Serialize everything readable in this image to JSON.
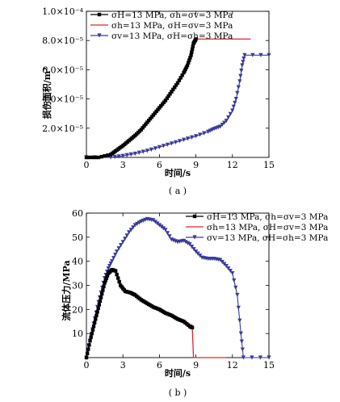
{
  "chart_data": [
    {
      "type": "line",
      "caption": "( a )",
      "xlabel": "时间/s",
      "ylabel": "损伤面积/m²",
      "xlim": [
        0,
        15
      ],
      "ylim": [
        0,
        0.0001
      ],
      "x_ticks": [
        "0",
        "3",
        "6",
        "9",
        "12",
        "15"
      ],
      "y_ticks": [
        "2.0×10⁻⁵",
        "4.0×10⁻⁵",
        "6.0×10⁻⁵",
        "8.0×10⁻⁵",
        "1.0×10⁻⁴"
      ],
      "legend_position": "top-right",
      "series": [
        {
          "name": "σH=13 MPa, σh=σv=3 MPa",
          "marker": "square",
          "color": "#000000",
          "points": [
            [
              0,
              0
            ],
            [
              1,
              0
            ],
            [
              2,
              2e-06
            ],
            [
              2.5,
              5e-06
            ],
            [
              3,
              8e-06
            ],
            [
              3.5,
              1.15e-05
            ],
            [
              4,
              1.5e-05
            ],
            [
              4.5,
              1.9e-05
            ],
            [
              5,
              2.4e-05
            ],
            [
              5.5,
              2.9e-05
            ],
            [
              6,
              3.4e-05
            ],
            [
              6.5,
              3.9e-05
            ],
            [
              7,
              4.5e-05
            ],
            [
              7.5,
              5.1e-05
            ],
            [
              8,
              5.8e-05
            ],
            [
              8.3,
              6.3e-05
            ],
            [
              8.6,
              7e-05
            ],
            [
              8.8,
              7.8e-05
            ],
            [
              9,
              8.1e-05
            ]
          ]
        },
        {
          "name": "σh=13 MPa, σH=σv=3 MPa",
          "marker": "none",
          "color": "#e0262a",
          "points": [
            [
              0,
              0
            ],
            [
              1,
              0
            ],
            [
              2,
              2e-06
            ],
            [
              2.5,
              5e-06
            ],
            [
              3,
              8e-06
            ],
            [
              3.5,
              1.15e-05
            ],
            [
              4,
              1.5e-05
            ],
            [
              4.5,
              1.9e-05
            ],
            [
              5,
              2.4e-05
            ],
            [
              5.5,
              2.9e-05
            ],
            [
              6,
              3.4e-05
            ],
            [
              6.5,
              3.9e-05
            ],
            [
              7,
              4.5e-05
            ],
            [
              7.5,
              5.1e-05
            ],
            [
              8,
              5.8e-05
            ],
            [
              8.3,
              6.3e-05
            ],
            [
              8.6,
              7e-05
            ],
            [
              8.8,
              7.8e-05
            ],
            [
              9,
              8.1e-05
            ],
            [
              10,
              8.1e-05
            ],
            [
              12,
              8.1e-05
            ],
            [
              13.5,
              8.1e-05
            ]
          ]
        },
        {
          "name": "σv=13 MPa, σH=σh=3 MPa",
          "marker": "triangle-down",
          "color": "#3a3a9a",
          "points": [
            [
              0,
              0
            ],
            [
              2,
              0
            ],
            [
              3,
              1e-06
            ],
            [
              4,
              2.5e-06
            ],
            [
              5,
              4.5e-06
            ],
            [
              6,
              7e-06
            ],
            [
              7,
              9.5e-06
            ],
            [
              8,
              1.2e-05
            ],
            [
              9,
              1.45e-05
            ],
            [
              10,
              1.75e-05
            ],
            [
              10.5,
              1.95e-05
            ],
            [
              11,
              2.1e-05
            ],
            [
              11.5,
              2.5e-05
            ],
            [
              12,
              3.2e-05
            ],
            [
              12.3,
              4e-05
            ],
            [
              12.6,
              5.2e-05
            ],
            [
              12.8,
              6.3e-05
            ],
            [
              13,
              7e-05
            ],
            [
              15,
              7e-05
            ]
          ]
        }
      ]
    },
    {
      "type": "line",
      "caption": "( b )",
      "xlabel": "时间/s",
      "ylabel": "流体压力/MPa",
      "xlim": [
        0,
        15
      ],
      "ylim": [
        0,
        60
      ],
      "x_ticks": [
        "0",
        "3",
        "6",
        "9",
        "12",
        "15"
      ],
      "y_ticks": [
        "10",
        "20",
        "30",
        "40",
        "50",
        "60"
      ],
      "legend_position": "top-right",
      "series": [
        {
          "name": "σH=13 MPa, σh=σv=3 MPa",
          "marker": "square",
          "color": "#000000",
          "points": [
            [
              0,
              0
            ],
            [
              0.3,
              7
            ],
            [
              0.6,
              13
            ],
            [
              0.9,
              19
            ],
            [
              1.2,
              25
            ],
            [
              1.5,
              31
            ],
            [
              1.8,
              35
            ],
            [
              2.1,
              36.5
            ],
            [
              2.4,
              36
            ],
            [
              2.8,
              30
            ],
            [
              3.2,
              27.5
            ],
            [
              3.6,
              27
            ],
            [
              4,
              26
            ],
            [
              4.5,
              24
            ],
            [
              5,
              22.5
            ],
            [
              5.5,
              21
            ],
            [
              6,
              20
            ],
            [
              6.5,
              18.5
            ],
            [
              7,
              17.5
            ],
            [
              7.5,
              16
            ],
            [
              8,
              15
            ],
            [
              8.5,
              13
            ],
            [
              8.7,
              12.5
            ]
          ]
        },
        {
          "name": "σh=13 MPa, σH=σv=3 MPa",
          "marker": "none",
          "color": "#e0262a",
          "points": [
            [
              0,
              0
            ],
            [
              0.3,
              7
            ],
            [
              0.6,
              13
            ],
            [
              0.9,
              19
            ],
            [
              1.2,
              25
            ],
            [
              1.5,
              31
            ],
            [
              1.8,
              35
            ],
            [
              2.1,
              36.5
            ],
            [
              2.4,
              36
            ],
            [
              2.8,
              30
            ],
            [
              3.2,
              27.5
            ],
            [
              3.6,
              27
            ],
            [
              4,
              26
            ],
            [
              4.5,
              24
            ],
            [
              5,
              22.5
            ],
            [
              5.5,
              21
            ],
            [
              6,
              20
            ],
            [
              6.5,
              18.5
            ],
            [
              7,
              17.5
            ],
            [
              7.5,
              16
            ],
            [
              8,
              15
            ],
            [
              8.5,
              13
            ],
            [
              8.7,
              12.5
            ],
            [
              8.8,
              0
            ],
            [
              10,
              0
            ],
            [
              11.5,
              0
            ]
          ]
        },
        {
          "name": "σv=13 MPa, σH=σh=3 MPa",
          "marker": "triangle-down",
          "color": "#3a3a9a",
          "points": [
            [
              0,
              0
            ],
            [
              0.3,
              7
            ],
            [
              0.6,
              14
            ],
            [
              0.9,
              21
            ],
            [
              1.2,
              27
            ],
            [
              1.5,
              33
            ],
            [
              1.8,
              37
            ],
            [
              2.1,
              40
            ],
            [
              2.5,
              44
            ],
            [
              3,
              48
            ],
            [
              3.5,
              52
            ],
            [
              4,
              55
            ],
            [
              4.5,
              56.5
            ],
            [
              5,
              57.5
            ],
            [
              5.5,
              57
            ],
            [
              6,
              55
            ],
            [
              6.5,
              53
            ],
            [
              7,
              49
            ],
            [
              7.5,
              48
            ],
            [
              8,
              48.5
            ],
            [
              8.5,
              47
            ],
            [
              9,
              44
            ],
            [
              9.5,
              41.5
            ],
            [
              10,
              41
            ],
            [
              10.5,
              41
            ],
            [
              11,
              40.5
            ],
            [
              11.5,
              38
            ],
            [
              12,
              35
            ],
            [
              12.4,
              26
            ],
            [
              12.7,
              10
            ],
            [
              12.9,
              0
            ],
            [
              15,
              0
            ]
          ]
        }
      ]
    }
  ]
}
